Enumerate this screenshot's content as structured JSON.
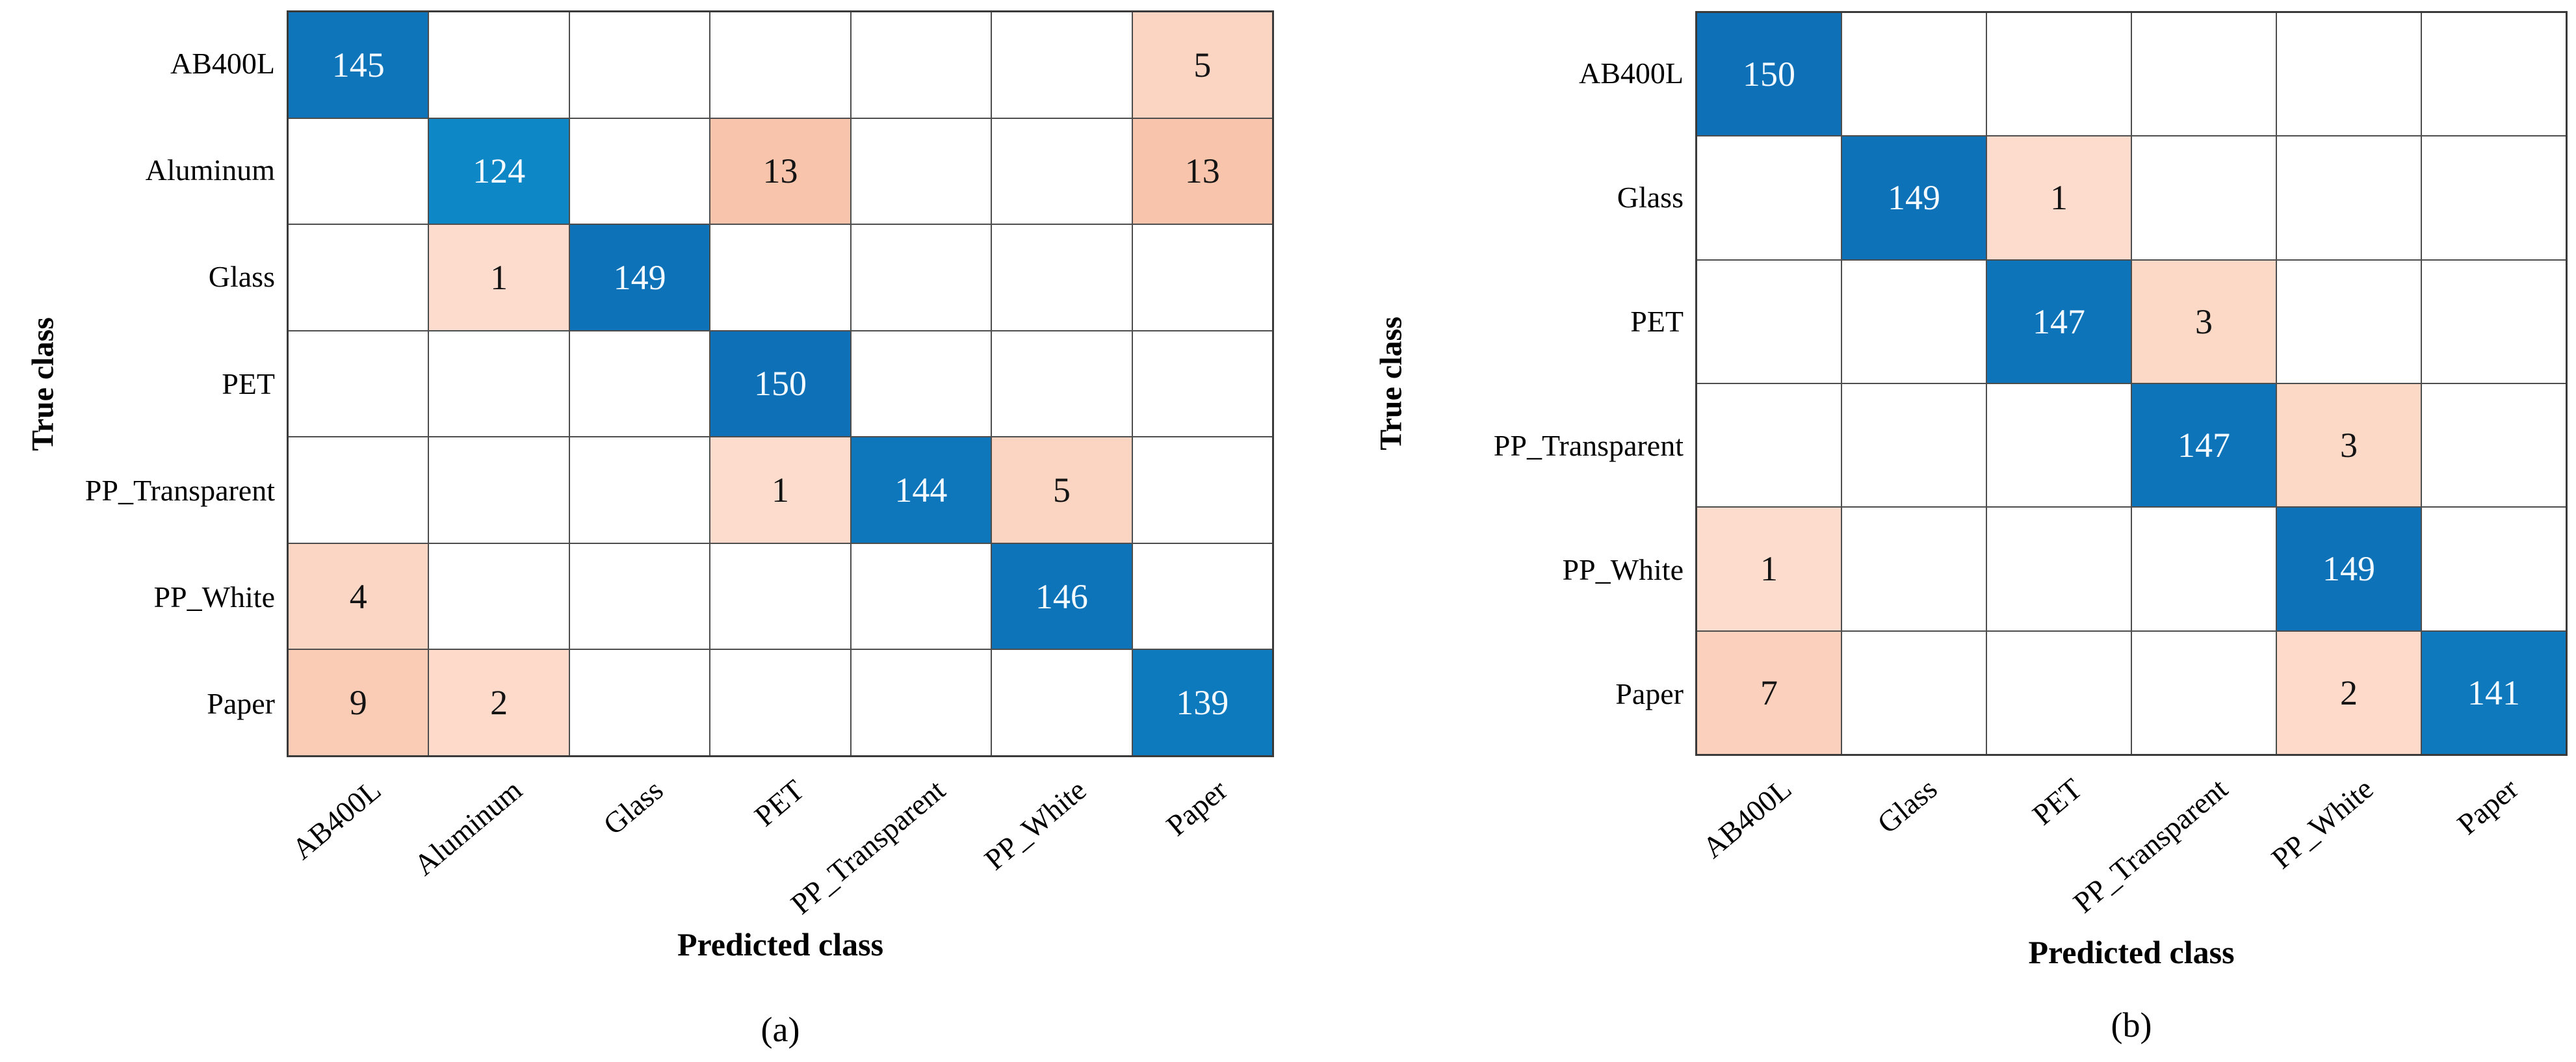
{
  "colors": {
    "diagonal_low": "#0d87c6",
    "diagonal_high": "#0e71b8",
    "offdiag_low": "#fddccd",
    "offdiag_high": "#f8c4ab",
    "empty_cell": "#ffffff",
    "grid_line": "#4d4d4d",
    "cell_text_on_blue": "#f2f9ff",
    "cell_text_on_pink": "#141414",
    "label_text": "#000000"
  },
  "chart_data": [
    {
      "type": "heatmap",
      "caption": "(a)",
      "xlabel": "Predicted class",
      "ylabel": "True class",
      "x_categories": [
        "AB400L",
        "Aluminum",
        "Glass",
        "PET",
        "PP_Transparent",
        "PP_White",
        "Paper"
      ],
      "y_categories": [
        "AB400L",
        "Aluminum",
        "Glass",
        "PET",
        "PP_Transparent",
        "PP_White",
        "Paper"
      ],
      "matrix": [
        [
          145,
          0,
          0,
          0,
          0,
          0,
          5
        ],
        [
          0,
          124,
          0,
          13,
          0,
          0,
          13
        ],
        [
          0,
          1,
          149,
          0,
          0,
          0,
          0
        ],
        [
          0,
          0,
          0,
          150,
          0,
          0,
          0
        ],
        [
          0,
          0,
          0,
          1,
          144,
          5,
          0
        ],
        [
          4,
          0,
          0,
          0,
          0,
          146,
          0
        ],
        [
          9,
          2,
          0,
          0,
          0,
          0,
          139
        ]
      ]
    },
    {
      "type": "heatmap",
      "caption": "(b)",
      "xlabel": "Predicted class",
      "ylabel": "True class",
      "x_categories": [
        "AB400L",
        "Glass",
        "PET",
        "PP_Transparent",
        "PP_White",
        "Paper"
      ],
      "y_categories": [
        "AB400L",
        "Glass",
        "PET",
        "PP_Transparent",
        "PP_White",
        "Paper"
      ],
      "matrix": [
        [
          150,
          0,
          0,
          0,
          0,
          0
        ],
        [
          0,
          149,
          1,
          0,
          0,
          0
        ],
        [
          0,
          0,
          147,
          3,
          0,
          0
        ],
        [
          0,
          0,
          0,
          147,
          3,
          0
        ],
        [
          1,
          0,
          0,
          0,
          149,
          0
        ],
        [
          7,
          0,
          0,
          0,
          2,
          141
        ]
      ]
    }
  ]
}
